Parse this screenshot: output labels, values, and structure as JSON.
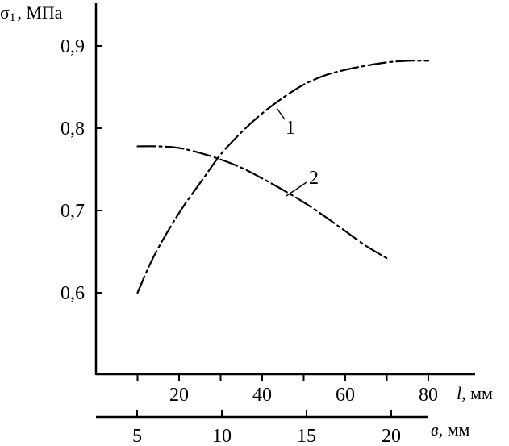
{
  "chart_data": {
    "type": "line",
    "y_axis": {
      "label": "σ1, МПа",
      "ticks": [
        0.6,
        0.7,
        0.8,
        0.9
      ],
      "tick_labels": [
        "0,6",
        "0,7",
        "0,8",
        "0,9"
      ],
      "range": [
        0.5,
        1.0
      ]
    },
    "x_axis_l": {
      "label": "l, мм",
      "ticks": [
        20,
        40,
        60,
        80
      ],
      "tick_labels": [
        "20",
        "40",
        "60",
        "80"
      ],
      "range": [
        0,
        90
      ]
    },
    "x_axis_b": {
      "label": "в, мм",
      "ticks": [
        5,
        10,
        15,
        20
      ],
      "tick_labels": [
        "5",
        "10",
        "15",
        "20"
      ],
      "range": [
        0,
        22
      ]
    },
    "series": [
      {
        "name": "1",
        "x_axis": "l",
        "points": [
          [
            10,
            0.6
          ],
          [
            14,
            0.645
          ],
          [
            20,
            0.697
          ],
          [
            26,
            0.74
          ],
          [
            30,
            0.768
          ],
          [
            35,
            0.795
          ],
          [
            40,
            0.818
          ],
          [
            45,
            0.837
          ],
          [
            50,
            0.853
          ],
          [
            55,
            0.864
          ],
          [
            60,
            0.871
          ],
          [
            65,
            0.876
          ],
          [
            70,
            0.88
          ],
          [
            75,
            0.882
          ],
          [
            80,
            0.882
          ]
        ]
      },
      {
        "name": "2",
        "x_axis": "l",
        "points": [
          [
            10,
            0.778
          ],
          [
            15,
            0.778
          ],
          [
            20,
            0.776
          ],
          [
            25,
            0.77
          ],
          [
            30,
            0.762
          ],
          [
            35,
            0.752
          ],
          [
            40,
            0.739
          ],
          [
            45,
            0.725
          ],
          [
            50,
            0.71
          ],
          [
            55,
            0.693
          ],
          [
            60,
            0.675
          ],
          [
            65,
            0.657
          ],
          [
            70,
            0.642
          ]
        ]
      }
    ]
  }
}
